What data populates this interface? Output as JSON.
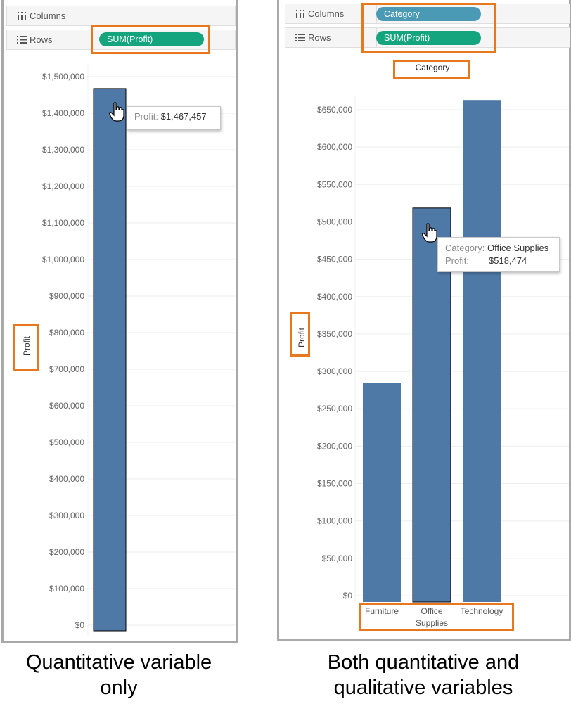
{
  "left": {
    "columns_label": "Columns",
    "rows_label": "Rows",
    "rows_pill": "SUM(Profit)",
    "tooltip_label": "Profit:",
    "tooltip_value": "$1,467,457",
    "caption": "Quantitative variable only"
  },
  "right": {
    "columns_label": "Columns",
    "rows_label": "Rows",
    "columns_pill": "Category",
    "rows_pill": "SUM(Profit)",
    "tooltip_cat_label": "Category:",
    "tooltip_cat_value": "Office Supplies",
    "tooltip_profit_label": "Profit:",
    "tooltip_profit_value": "$518,474",
    "caption": "Both quantitative and qualitative variables"
  },
  "colors": {
    "bar": "#4e79a7",
    "highlight": "#e8781e",
    "green_pill": "#14a57f",
    "blue_pill": "#4a9ab5"
  },
  "chart_data": [
    {
      "type": "bar",
      "categories": [
        ""
      ],
      "values": [
        1467457
      ],
      "ylabel": "Profit",
      "xlabel": "",
      "ylim": [
        0,
        1500000
      ],
      "yticks": [
        0,
        100000,
        200000,
        300000,
        400000,
        500000,
        600000,
        700000,
        800000,
        900000,
        1000000,
        1100000,
        1200000,
        1300000,
        1400000,
        1500000
      ],
      "ytick_labels": [
        "$0",
        "$100,000",
        "$200,000",
        "$300,000",
        "$400,000",
        "$500,000",
        "$600,000",
        "$700,000",
        "$800,000",
        "$900,000",
        "$1,000,000",
        "$1,100,000",
        "$1,200,000",
        "$1,300,000",
        "$1,400,000",
        "$1,500,000"
      ],
      "grid": true
    },
    {
      "type": "bar",
      "categories": [
        "Furniture",
        "Office Supplies",
        "Technology"
      ],
      "values": [
        285000,
        518474,
        663000
      ],
      "title": "Category",
      "ylabel": "Profit",
      "xlabel": "",
      "ylim": [
        0,
        650000
      ],
      "yticks": [
        0,
        50000,
        100000,
        150000,
        200000,
        250000,
        300000,
        350000,
        400000,
        450000,
        500000,
        550000,
        600000,
        650000
      ],
      "ytick_labels": [
        "$0",
        "$50,000",
        "$100,000",
        "$150,000",
        "$200,000",
        "$250,000",
        "$300,000",
        "$350,000",
        "$400,000",
        "$450,000",
        "$500,000",
        "$550,000",
        "$600,000",
        "$650,000"
      ],
      "grid": true
    }
  ]
}
